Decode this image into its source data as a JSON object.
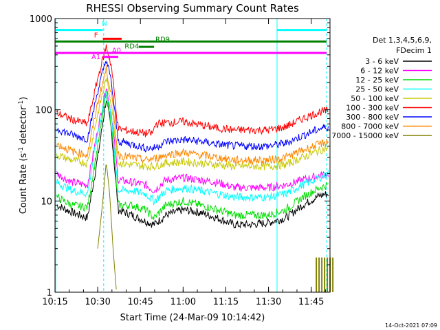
{
  "chart_data": {
    "type": "line",
    "title": "RHESSI Observing Summary Count Rates",
    "xlabel": "Start Time (24-Mar-09 10:14:42)",
    "ylabel_main": "Count Rate (s",
    "ylabel_sup1": "-1",
    "ylabel_mid": " detector",
    "ylabel_sup2": "-1",
    "ylabel_end": ")",
    "y_scale": "log",
    "ylim": [
      1,
      1000
    ],
    "xlim": [
      10.25,
      11.86
    ],
    "x_ticks": [
      {
        "v": 10.25,
        "label": "10:15"
      },
      {
        "v": 10.5,
        "label": "10:30"
      },
      {
        "v": 10.75,
        "label": "10:45"
      },
      {
        "v": 11.0,
        "label": "11:00"
      },
      {
        "v": 11.25,
        "label": "11:15"
      },
      {
        "v": 11.5,
        "label": "11:30"
      },
      {
        "v": 11.75,
        "label": "11:45"
      }
    ],
    "y_ticks": [
      {
        "v": 1,
        "label": "1"
      },
      {
        "v": 10,
        "label": "10"
      },
      {
        "v": 100,
        "label": "100"
      },
      {
        "v": 1000,
        "label": "1000"
      }
    ],
    "legend_header": [
      "Det 1,3,4,5,6,9,",
      "FDecim 1"
    ],
    "series": [
      {
        "name": "3 - 6 keV",
        "color": "#000000",
        "points": [
          [
            10.26,
            9
          ],
          [
            10.35,
            7.5
          ],
          [
            10.44,
            6.5
          ],
          [
            10.5,
            30
          ],
          [
            10.55,
            130
          ],
          [
            10.58,
            60
          ],
          [
            10.62,
            8
          ],
          [
            10.7,
            7
          ],
          [
            10.78,
            6
          ],
          [
            10.83,
            5.5
          ],
          [
            10.9,
            7
          ],
          [
            11.0,
            8
          ],
          [
            11.1,
            7.5
          ],
          [
            11.2,
            6.5
          ],
          [
            11.3,
            5.5
          ],
          [
            11.4,
            5.5
          ],
          [
            11.5,
            5.8
          ],
          [
            11.6,
            6.5
          ],
          [
            11.7,
            9
          ],
          [
            11.8,
            11.5
          ],
          [
            11.85,
            12
          ]
        ]
      },
      {
        "name": "6 - 12 keV",
        "color": "#ff00ff",
        "points": [
          [
            10.26,
            20
          ],
          [
            10.35,
            16
          ],
          [
            10.44,
            15
          ],
          [
            10.5,
            60
          ],
          [
            10.55,
            180
          ],
          [
            10.58,
            90
          ],
          [
            10.62,
            17
          ],
          [
            10.7,
            16
          ],
          [
            10.78,
            15
          ],
          [
            10.83,
            13
          ],
          [
            10.9,
            17
          ],
          [
            11.0,
            18
          ],
          [
            11.1,
            17
          ],
          [
            11.2,
            16
          ],
          [
            11.3,
            14
          ],
          [
            11.4,
            14
          ],
          [
            11.5,
            14
          ],
          [
            11.6,
            15
          ],
          [
            11.7,
            17
          ],
          [
            11.8,
            19
          ],
          [
            11.85,
            20
          ]
        ]
      },
      {
        "name": "12 - 25 keV",
        "color": "#00dd00",
        "points": [
          [
            10.26,
            11
          ],
          [
            10.35,
            9
          ],
          [
            10.44,
            8.5
          ],
          [
            10.5,
            40
          ],
          [
            10.55,
            150
          ],
          [
            10.58,
            70
          ],
          [
            10.62,
            9
          ],
          [
            10.7,
            9
          ],
          [
            10.78,
            8
          ],
          [
            10.83,
            6.5
          ],
          [
            10.9,
            9
          ],
          [
            11.0,
            10
          ],
          [
            11.1,
            9
          ],
          [
            11.2,
            8
          ],
          [
            11.3,
            7
          ],
          [
            11.4,
            7
          ],
          [
            11.5,
            7
          ],
          [
            11.6,
            8
          ],
          [
            11.7,
            11
          ],
          [
            11.8,
            14
          ],
          [
            11.85,
            15
          ]
        ]
      },
      {
        "name": "25 - 50 keV",
        "color": "#00ffff",
        "points": [
          [
            10.26,
            16
          ],
          [
            10.35,
            13
          ],
          [
            10.44,
            12
          ],
          [
            10.5,
            55
          ],
          [
            10.55,
            165
          ],
          [
            10.58,
            80
          ],
          [
            10.62,
            13
          ],
          [
            10.7,
            13
          ],
          [
            10.78,
            12
          ],
          [
            10.83,
            10
          ],
          [
            10.9,
            13
          ],
          [
            11.0,
            14
          ],
          [
            11.1,
            13
          ],
          [
            11.2,
            12
          ],
          [
            11.3,
            11
          ],
          [
            11.4,
            11
          ],
          [
            11.5,
            11
          ],
          [
            11.6,
            12
          ],
          [
            11.7,
            15
          ],
          [
            11.8,
            18
          ],
          [
            11.85,
            20
          ]
        ]
      },
      {
        "name": "50 - 100 keV",
        "color": "#c8c800",
        "points": [
          [
            10.26,
            32
          ],
          [
            10.35,
            28
          ],
          [
            10.44,
            26
          ],
          [
            10.5,
            90
          ],
          [
            10.55,
            220
          ],
          [
            10.58,
            120
          ],
          [
            10.62,
            26
          ],
          [
            10.7,
            25
          ],
          [
            10.78,
            24
          ],
          [
            10.83,
            24
          ],
          [
            10.9,
            26
          ],
          [
            11.0,
            27
          ],
          [
            11.1,
            26
          ],
          [
            11.2,
            25
          ],
          [
            11.3,
            24
          ],
          [
            11.4,
            24
          ],
          [
            11.5,
            24
          ],
          [
            11.6,
            25
          ],
          [
            11.7,
            30
          ],
          [
            11.8,
            36
          ],
          [
            11.85,
            38
          ]
        ]
      },
      {
        "name": "100 - 300 keV",
        "color": "#ff0000",
        "points": [
          [
            10.26,
            92
          ],
          [
            10.35,
            78
          ],
          [
            10.44,
            70
          ],
          [
            10.5,
            220
          ],
          [
            10.55,
            500
          ],
          [
            10.58,
            300
          ],
          [
            10.62,
            62
          ],
          [
            10.7,
            58
          ],
          [
            10.78,
            55
          ],
          [
            10.82,
            55
          ],
          [
            10.84,
            70
          ],
          [
            10.9,
            72
          ],
          [
            11.0,
            74
          ],
          [
            11.1,
            68
          ],
          [
            11.2,
            63
          ],
          [
            11.3,
            60
          ],
          [
            11.4,
            60
          ],
          [
            11.5,
            60
          ],
          [
            11.6,
            65
          ],
          [
            11.7,
            80
          ],
          [
            11.8,
            95
          ],
          [
            11.85,
            97
          ]
        ]
      },
      {
        "name": "300 - 800 keV",
        "color": "#0000ff",
        "points": [
          [
            10.26,
            62
          ],
          [
            10.35,
            53
          ],
          [
            10.44,
            48
          ],
          [
            10.5,
            160
          ],
          [
            10.55,
            360
          ],
          [
            10.58,
            200
          ],
          [
            10.62,
            45
          ],
          [
            10.7,
            42
          ],
          [
            10.78,
            38
          ],
          [
            10.83,
            38
          ],
          [
            10.9,
            45
          ],
          [
            11.0,
            47
          ],
          [
            11.1,
            45
          ],
          [
            11.2,
            42
          ],
          [
            11.3,
            40
          ],
          [
            11.4,
            40
          ],
          [
            11.5,
            40
          ],
          [
            11.6,
            43
          ],
          [
            11.7,
            52
          ],
          [
            11.8,
            62
          ],
          [
            11.85,
            65
          ]
        ]
      },
      {
        "name": "800 - 7000 keV",
        "color": "#ff8800",
        "points": [
          [
            10.26,
            42
          ],
          [
            10.35,
            35
          ],
          [
            10.44,
            32
          ],
          [
            10.5,
            120
          ],
          [
            10.55,
            280
          ],
          [
            10.58,
            150
          ],
          [
            10.62,
            32
          ],
          [
            10.7,
            30
          ],
          [
            10.78,
            28
          ],
          [
            10.83,
            29
          ],
          [
            10.9,
            32
          ],
          [
            11.0,
            34
          ],
          [
            11.1,
            32
          ],
          [
            11.2,
            30
          ],
          [
            11.3,
            28
          ],
          [
            11.4,
            28
          ],
          [
            11.5,
            28
          ],
          [
            11.6,
            30
          ],
          [
            11.7,
            36
          ],
          [
            11.8,
            42
          ],
          [
            11.85,
            45
          ]
        ]
      },
      {
        "name": "7000 - 15000 keV",
        "color": "#808000",
        "points": [
          [
            10.5,
            3
          ],
          [
            10.53,
            10
          ],
          [
            10.55,
            27
          ],
          [
            10.57,
            12
          ],
          [
            10.59,
            3
          ],
          [
            10.61,
            1
          ]
        ]
      }
    ],
    "flags": [
      {
        "label": "N",
        "color": "#00ffff",
        "y": 750,
        "x0": 10.25,
        "x1": 10.53
      },
      {
        "label": "N",
        "color": "#00ffff",
        "y": 750,
        "x0": 11.55,
        "x1": 11.84
      },
      {
        "label": "F",
        "color": "#ff0000",
        "y": 600,
        "x0": 10.53,
        "x1": 10.64
      },
      {
        "label": "RD9",
        "color": "#008000",
        "y": 560,
        "x0": 10.25,
        "x1": 11.84
      },
      {
        "label": "RD4",
        "color": "#008000",
        "y": 490,
        "x0": 10.74,
        "x1": 10.83
      },
      {
        "label": "A0",
        "color": "#ff00ff",
        "y": 420,
        "x0": 10.25,
        "x1": 11.84
      },
      {
        "label": "A1",
        "color": "#ff00ff",
        "y": 380,
        "x0": 10.53,
        "x1": 10.62
      }
    ],
    "flag_text": [
      {
        "text": "N",
        "color": "#00ffff",
        "x": 10.54,
        "y": 830
      },
      {
        "text": "F",
        "color": "#ff0000",
        "x": 10.49,
        "y": 620
      },
      {
        "text": "RD9",
        "color": "#008000",
        "x": 10.88,
        "y": 560
      },
      {
        "text": "RD4",
        "color": "#008000",
        "x": 10.7,
        "y": 470
      },
      {
        "text": "A0",
        "color": "#ff00ff",
        "x": 10.61,
        "y": 425
      },
      {
        "text": "A1",
        "color": "#ff00ff",
        "x": 10.49,
        "y": 360
      }
    ],
    "cyan_lines": [
      {
        "x": 10.254,
        "style": "solid"
      },
      {
        "x": 10.535,
        "style": "dashed"
      },
      {
        "x": 11.55,
        "style": "solid"
      },
      {
        "x": 11.84,
        "style": "dashed"
      }
    ]
  },
  "timestamp": "14-Oct-2021 07:09"
}
